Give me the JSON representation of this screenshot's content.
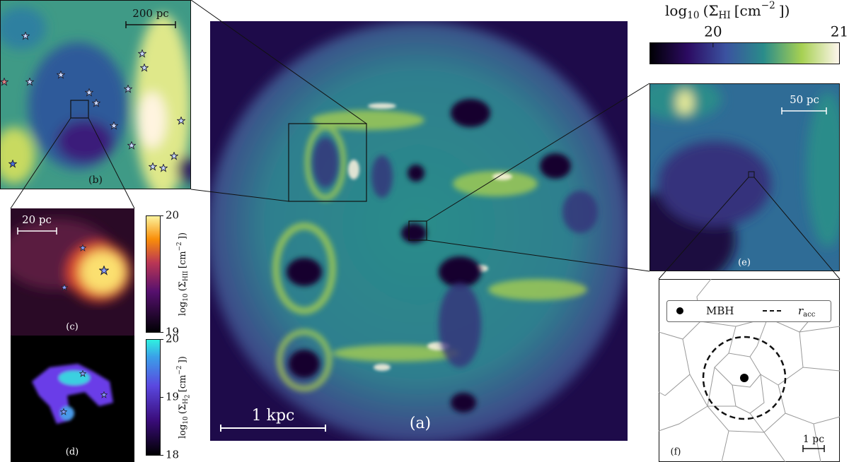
{
  "colorbar_top": {
    "label": [
      "log",
      "10",
      "(Σ",
      "HI",
      "[cm",
      "−2",
      "])"
    ],
    "lim": [
      19.5,
      21
    ],
    "ticks": [
      20,
      21
    ]
  },
  "panel_a": {
    "label": "(a)",
    "scale_bar": "1 kpc"
  },
  "panel_b": {
    "label": "(b)",
    "scale_bar": "200 pc"
  },
  "panel_c": {
    "label": "(c)",
    "scale_bar": "20 pc",
    "colorbar": {
      "label": [
        "log",
        "10",
        "(Σ",
        "HII",
        "[cm",
        "−2",
        "])"
      ],
      "lim": [
        19,
        20
      ],
      "ticks": [
        19,
        20
      ]
    }
  },
  "panel_d": {
    "label": "(d)",
    "colorbar": {
      "label": [
        "log",
        "10",
        "(Σ",
        "H",
        "2",
        "[cm",
        "−2",
        "])"
      ],
      "lim": [
        18,
        20
      ],
      "ticks": [
        18,
        19,
        20
      ]
    }
  },
  "panel_e": {
    "label": "(e)",
    "scale_bar": "50 pc"
  },
  "panel_f": {
    "label": "(f)",
    "scale_bar": "1 pc",
    "legend": {
      "mbh": "MBH",
      "racc": [
        "r",
        "acc"
      ]
    }
  }
}
